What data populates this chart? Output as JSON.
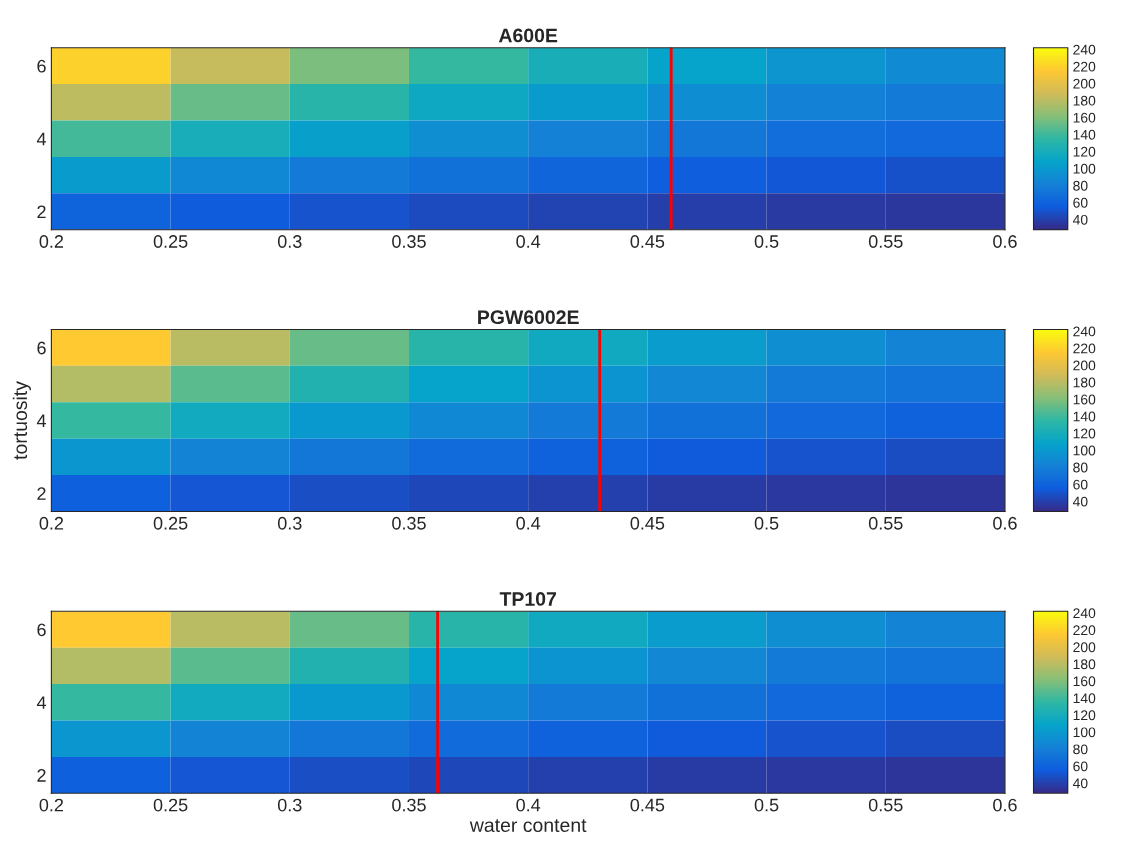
{
  "chart_data": [
    {
      "type": "heatmap",
      "title": "A600E",
      "x": [
        0.225,
        0.275,
        0.325,
        0.375,
        0.425,
        0.475,
        0.525,
        0.575
      ],
      "y_categories": [
        "6",
        null,
        "4",
        null,
        "2"
      ],
      "cells": [
        [
          220,
          185,
          158,
          137,
          121,
          108,
          97,
          89
        ],
        [
          181,
          152,
          131,
          114,
          101,
          91,
          83,
          77
        ],
        [
          141,
          120,
          105,
          92,
          82,
          74,
          68,
          64
        ],
        [
          101,
          87,
          77,
          69,
          62,
          57,
          53,
          49
        ],
        [
          61,
          55,
          50,
          46,
          42,
          39,
          37,
          35
        ]
      ],
      "xlim": [
        0.2,
        0.6
      ],
      "xticks": [
        0.2,
        0.25,
        0.3,
        0.35,
        0.4,
        0.45,
        0.5,
        0.55,
        0.6
      ],
      "clim": [
        28,
        242
      ],
      "cticks": [
        40,
        60,
        80,
        100,
        120,
        140,
        160,
        180,
        200,
        220,
        240
      ],
      "ref_lines": [
        {
          "axis": "x",
          "value": 0.46,
          "color": "#ff0000"
        }
      ]
    },
    {
      "type": "heatmap",
      "title": "PGW6002E",
      "ylabel": "tortuosity",
      "x": [
        0.225,
        0.275,
        0.325,
        0.375,
        0.425,
        0.475,
        0.525,
        0.575
      ],
      "y_categories": [
        "6",
        null,
        "4",
        null,
        "2"
      ],
      "cells": [
        [
          216,
          180,
          152,
          131,
          115,
          102,
          92,
          84
        ],
        [
          177,
          148,
          127,
          109,
          96,
          86,
          78,
          72
        ],
        [
          137,
          116,
          100,
          87,
          78,
          70,
          64,
          59
        ],
        [
          98,
          84,
          74,
          66,
          59,
          54,
          50,
          47
        ],
        [
          58,
          52,
          48,
          44,
          40,
          38,
          36,
          34
        ]
      ],
      "xlim": [
        0.2,
        0.6
      ],
      "xticks": [
        0.2,
        0.25,
        0.3,
        0.35,
        0.4,
        0.45,
        0.5,
        0.55,
        0.6
      ],
      "clim": [
        28,
        242
      ],
      "cticks": [
        40,
        60,
        80,
        100,
        120,
        140,
        160,
        180,
        200,
        220,
        240
      ],
      "ref_lines": [
        {
          "axis": "x",
          "value": 0.43,
          "color": "#ff0000"
        }
      ]
    },
    {
      "type": "heatmap",
      "title": "TP107",
      "xlabel": "water content",
      "x": [
        0.225,
        0.275,
        0.325,
        0.375,
        0.425,
        0.475,
        0.525,
        0.575
      ],
      "y_categories": [
        "6",
        null,
        "4",
        null,
        "2"
      ],
      "cells": [
        [
          216,
          180,
          152,
          131,
          115,
          102,
          92,
          84
        ],
        [
          177,
          148,
          127,
          109,
          96,
          86,
          78,
          72
        ],
        [
          137,
          116,
          100,
          87,
          78,
          70,
          64,
          59
        ],
        [
          98,
          84,
          74,
          66,
          59,
          54,
          50,
          47
        ],
        [
          58,
          52,
          48,
          44,
          40,
          38,
          36,
          34
        ]
      ],
      "xlim": [
        0.2,
        0.6
      ],
      "xticks": [
        0.2,
        0.25,
        0.3,
        0.35,
        0.4,
        0.45,
        0.5,
        0.55,
        0.6
      ],
      "clim": [
        28,
        242
      ],
      "cticks": [
        40,
        60,
        80,
        100,
        120,
        140,
        160,
        180,
        200,
        220,
        240
      ],
      "ref_lines": [
        {
          "axis": "x",
          "value": 0.362,
          "color": "#ff0000"
        }
      ]
    }
  ]
}
